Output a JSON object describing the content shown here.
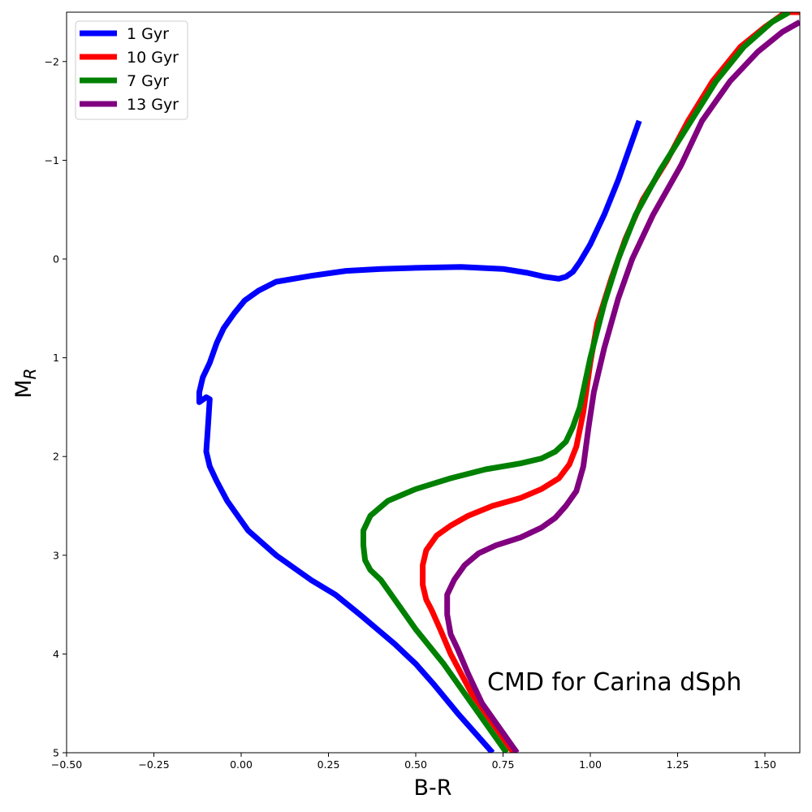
{
  "chart_data": {
    "type": "line",
    "xlabel": "B-R",
    "ylabel": "M",
    "ylabel_sub": "R",
    "annotation": "CMD for Carina dSph",
    "xlim": [
      -0.5,
      1.6
    ],
    "ylim": [
      5,
      -2.5
    ],
    "y_inverted": true,
    "x_ticks": [
      -0.5,
      -0.25,
      0.0,
      0.25,
      0.5,
      0.75,
      1.0,
      1.25,
      1.5
    ],
    "x_tick_labels": [
      "−0.50",
      "−0.25",
      "0.00",
      "0.25",
      "0.50",
      "0.75",
      "1.00",
      "1.25",
      "1.50"
    ],
    "y_ticks": [
      -2,
      -1,
      0,
      1,
      2,
      3,
      4,
      5
    ],
    "y_tick_labels": [
      "−2",
      "−1",
      "0",
      "1",
      "2",
      "3",
      "4",
      "5"
    ],
    "grid": false,
    "legend_position": "top-left",
    "series": [
      {
        "name": "1 Gyr",
        "color": "#0000ff",
        "x": [
          0.72,
          0.62,
          0.55,
          0.5,
          0.44,
          0.39,
          0.34,
          0.27,
          0.2,
          0.1,
          0.02,
          -0.04,
          -0.07,
          -0.09,
          -0.1,
          -0.095,
          -0.09,
          -0.1,
          -0.12,
          -0.12,
          -0.11,
          -0.09,
          -0.07,
          -0.05,
          -0.02,
          0.01,
          0.05,
          0.1,
          0.2,
          0.3,
          0.4,
          0.5,
          0.63,
          0.75,
          0.82,
          0.87,
          0.91,
          0.93,
          0.95,
          0.97,
          1.0,
          1.04,
          1.08,
          1.14
        ],
        "y": [
          5.0,
          4.6,
          4.3,
          4.1,
          3.9,
          3.75,
          3.6,
          3.4,
          3.25,
          3.0,
          2.75,
          2.45,
          2.25,
          2.1,
          1.95,
          1.7,
          1.42,
          1.4,
          1.45,
          1.35,
          1.2,
          1.05,
          0.85,
          0.7,
          0.55,
          0.42,
          0.32,
          0.23,
          0.17,
          0.12,
          0.1,
          0.09,
          0.08,
          0.1,
          0.14,
          0.18,
          0.2,
          0.18,
          0.13,
          0.03,
          -0.15,
          -0.45,
          -0.8,
          -1.4
        ]
      },
      {
        "name": "10 Gyr",
        "color": "#ff0000",
        "x": [
          0.78,
          0.72,
          0.66,
          0.6,
          0.57,
          0.545,
          0.53,
          0.52,
          0.52,
          0.53,
          0.56,
          0.6,
          0.65,
          0.72,
          0.8,
          0.86,
          0.91,
          0.94,
          0.96,
          0.98,
          1.0,
          1.02,
          1.06,
          1.1,
          1.15,
          1.22,
          1.28,
          1.35,
          1.43,
          1.5,
          1.56,
          1.6
        ],
        "y": [
          5.0,
          4.7,
          4.4,
          4.0,
          3.75,
          3.55,
          3.45,
          3.3,
          3.1,
          2.95,
          2.8,
          2.7,
          2.6,
          2.5,
          2.42,
          2.33,
          2.22,
          2.08,
          1.9,
          1.55,
          1.05,
          0.65,
          0.2,
          -0.2,
          -0.6,
          -1.0,
          -1.4,
          -1.8,
          -2.15,
          -2.35,
          -2.5,
          -2.5
        ]
      },
      {
        "name": "7 Gyr",
        "color": "#008000",
        "x": [
          0.76,
          0.66,
          0.58,
          0.5,
          0.44,
          0.4,
          0.37,
          0.355,
          0.35,
          0.35,
          0.37,
          0.42,
          0.5,
          0.6,
          0.7,
          0.8,
          0.86,
          0.9,
          0.93,
          0.95,
          0.97,
          1.0,
          1.04,
          1.08,
          1.13,
          1.2,
          1.28,
          1.36,
          1.44,
          1.52,
          1.57
        ],
        "y": [
          5.0,
          4.5,
          4.1,
          3.75,
          3.45,
          3.25,
          3.15,
          3.05,
          2.9,
          2.75,
          2.6,
          2.45,
          2.33,
          2.22,
          2.13,
          2.07,
          2.02,
          1.95,
          1.85,
          1.7,
          1.5,
          1.0,
          0.45,
          0.0,
          -0.45,
          -0.9,
          -1.35,
          -1.8,
          -2.15,
          -2.4,
          -2.5
        ]
      },
      {
        "name": "13 Gyr",
        "color": "#800080",
        "x": [
          0.79,
          0.75,
          0.69,
          0.65,
          0.62,
          0.6,
          0.59,
          0.59,
          0.61,
          0.64,
          0.68,
          0.73,
          0.8,
          0.86,
          0.9,
          0.93,
          0.96,
          0.98,
          0.995,
          1.01,
          1.04,
          1.08,
          1.12,
          1.18,
          1.26,
          1.32,
          1.4,
          1.48,
          1.55,
          1.6
        ],
        "y": [
          5.0,
          4.8,
          4.5,
          4.2,
          3.95,
          3.8,
          3.6,
          3.4,
          3.25,
          3.1,
          2.98,
          2.9,
          2.82,
          2.72,
          2.62,
          2.5,
          2.35,
          2.1,
          1.7,
          1.35,
          0.9,
          0.4,
          0.0,
          -0.45,
          -0.95,
          -1.4,
          -1.8,
          -2.1,
          -2.3,
          -2.4
        ]
      }
    ],
    "legend_order": [
      "1 Gyr",
      "10 Gyr",
      "7 Gyr",
      "13 Gyr"
    ]
  }
}
